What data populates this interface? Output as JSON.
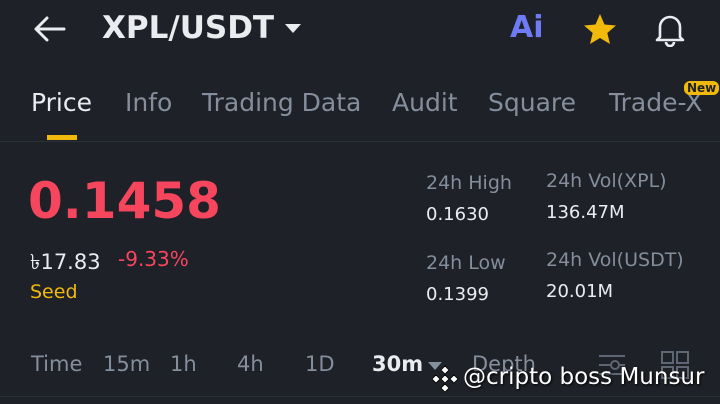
{
  "header": {
    "pair": "XPL/USDT",
    "ai": "Ai"
  },
  "tabs": [
    "Price",
    "Info",
    "Trading Data",
    "Audit",
    "Square",
    "Trade-X"
  ],
  "badge": "New",
  "price": {
    "last": "0.1458",
    "local": "৳17.83",
    "change": "-9.33%",
    "tag": "Seed"
  },
  "stats": [
    {
      "label": "24h High",
      "value": "0.1630"
    },
    {
      "label": "24h Vol(XPL)",
      "value": "136.47M"
    },
    {
      "label": "24h Low",
      "value": "0.1399"
    },
    {
      "label": "24h Vol(USDT)",
      "value": "20.01M"
    }
  ],
  "intervals": [
    "Time",
    "15m",
    "1h",
    "4h",
    "1D",
    "30m",
    "Depth"
  ],
  "watermark": "@cripto boss Munsur"
}
